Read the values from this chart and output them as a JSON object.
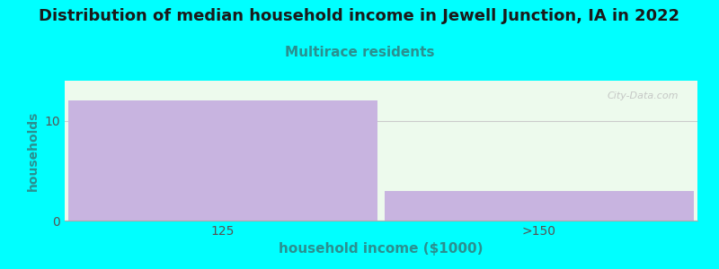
{
  "title": "Distribution of median household income in Jewell Junction, IA in 2022",
  "subtitle": "Multirace residents",
  "xlabel": "household income ($1000)",
  "ylabel": "households",
  "categories": [
    "125",
    ">150"
  ],
  "values": [
    12,
    3
  ],
  "bar_color": "#c8b4e0",
  "bar_edge_color": "#c8b4e0",
  "background_color": "#00ffff",
  "plot_bg_color": "#edfaed",
  "title_fontsize": 13,
  "subtitle_fontsize": 11,
  "subtitle_color": "#2a9090",
  "ylabel_color": "#2a9090",
  "xlabel_color": "#2a9090",
  "tick_color": "#555555",
  "ylim": [
    0,
    14
  ],
  "yticks": [
    0,
    10
  ],
  "grid_color": "#cccccc",
  "watermark": "City-Data.com"
}
